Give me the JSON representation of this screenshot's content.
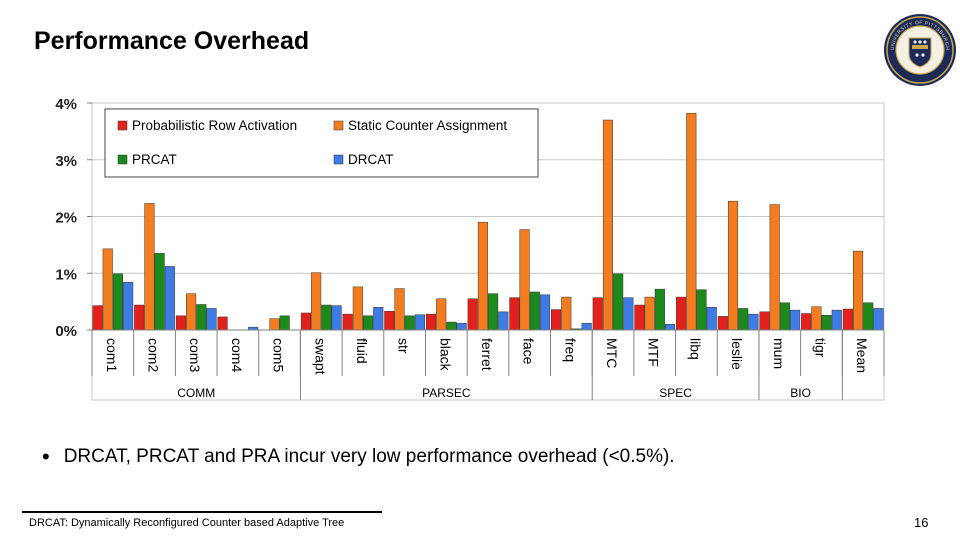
{
  "slide": {
    "title": "Performance Overhead",
    "bullet": "DRCAT, PRCAT and PRA incur very low performance overhead (<0.5%).",
    "footer": "DRCAT: Dynamically Reconfigured Counter based Adaptive Tree",
    "page_number": "16",
    "logo": {
      "icon": "university-seal-icon",
      "text": "UNIVERSITY OF PITTSBURGH"
    }
  },
  "colors": {
    "pra": "#e3201b",
    "sca": "#f47c20",
    "prcat": "#1b8a1b",
    "drcat": "#3e7be4",
    "axis": "#808080",
    "grid": "#c8c8c8"
  },
  "chart_data": {
    "type": "bar",
    "title": "",
    "xlabel": "",
    "ylabel": "",
    "ylim": [
      0,
      4
    ],
    "yticks": [
      "0%",
      "1%",
      "2%",
      "3%",
      "4%"
    ],
    "grid": true,
    "legend_position": "top-left",
    "categories": [
      "com1",
      "com2",
      "com3",
      "com4",
      "com5",
      "swapt",
      "fluid",
      "str",
      "black",
      "ferret",
      "face",
      "freq",
      "MTC",
      "MTF",
      "libq",
      "leslie",
      "mum",
      "tigr",
      "Mean"
    ],
    "groups": [
      {
        "label": "COMM",
        "from": 0,
        "to": 4
      },
      {
        "label": "PARSEC",
        "from": 5,
        "to": 11
      },
      {
        "label": "SPEC",
        "from": 12,
        "to": 15
      },
      {
        "label": "BIO",
        "from": 16,
        "to": 17
      }
    ],
    "series": [
      {
        "name": "Probabilistic Row Activation",
        "key": "pra",
        "values": [
          0.43,
          0.44,
          0.25,
          0.23,
          0.0,
          0.3,
          0.28,
          0.33,
          0.28,
          0.55,
          0.57,
          0.36,
          0.57,
          0.44,
          0.58,
          0.24,
          0.32,
          0.29,
          0.37
        ]
      },
      {
        "name": "Static Counter Assignment",
        "key": "sca",
        "values": [
          1.43,
          2.23,
          0.64,
          0.0,
          0.2,
          1.01,
          0.76,
          0.73,
          0.55,
          1.9,
          1.77,
          0.58,
          3.7,
          0.58,
          3.82,
          2.27,
          2.21,
          0.41,
          1.39
        ]
      },
      {
        "name": "PRCAT",
        "key": "prcat",
        "values": [
          0.99,
          1.35,
          0.45,
          0.0,
          0.25,
          0.44,
          0.25,
          0.25,
          0.14,
          0.64,
          0.67,
          0.02,
          0.99,
          0.72,
          0.71,
          0.38,
          0.48,
          0.26,
          0.48
        ]
      },
      {
        "name": "DRCAT",
        "key": "drcat",
        "values": [
          0.84,
          1.12,
          0.38,
          0.05,
          0.0,
          0.43,
          0.4,
          0.27,
          0.12,
          0.32,
          0.62,
          0.12,
          0.57,
          0.1,
          0.4,
          0.28,
          0.35,
          0.35,
          0.38
        ]
      }
    ]
  }
}
